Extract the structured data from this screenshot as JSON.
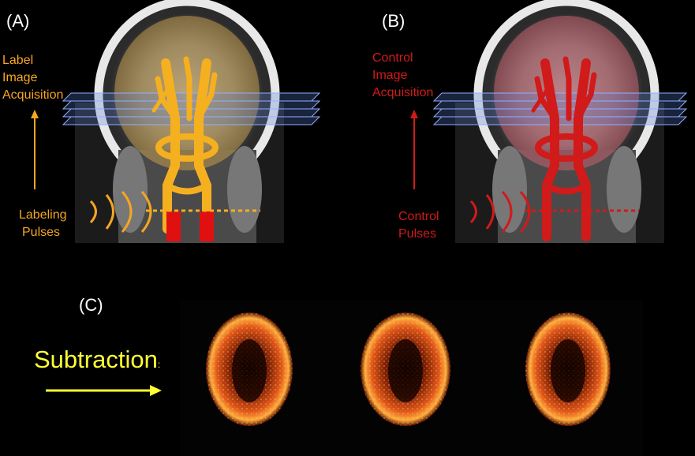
{
  "panels": {
    "a": {
      "letter": "(A)",
      "acq_lines": [
        "Label",
        "Image",
        "Acquisition"
      ],
      "pulse_lines": [
        "Labeling",
        "Pulses"
      ]
    },
    "b": {
      "letter": "(B)",
      "acq_lines": [
        "Control",
        "Image",
        "Acquisition"
      ],
      "pulse_lines": [
        "Control",
        "Pulses"
      ]
    },
    "c": {
      "letter": "(C)",
      "subtraction": "Subtraction",
      "subtraction_suffix": ":"
    }
  },
  "colors": {
    "label": "#f5a623",
    "control": "#d11a1a",
    "subtraction": "#ffff33",
    "slab": "#5b7fd6"
  }
}
